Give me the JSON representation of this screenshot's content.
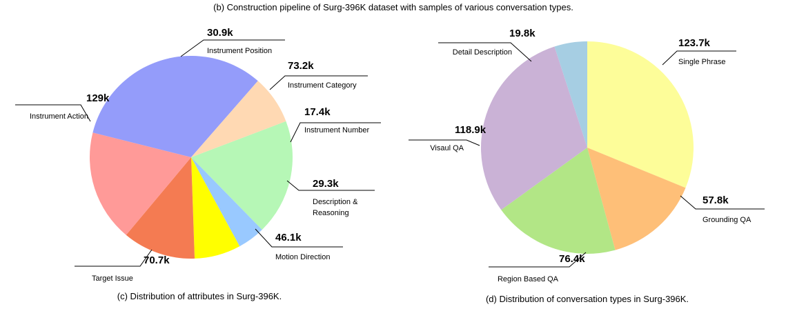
{
  "figure": {
    "header_caption": "(b) Construction pipeline of Surg-396K dataset with samples of various conversation types."
  },
  "chart_data": [
    {
      "type": "pie",
      "caption": "(c) Distribution of attributes in Surg-396K.",
      "slices": [
        {
          "label": "Instrument Category",
          "value": 73.2,
          "value_label": "73.2k",
          "color": "#b6f7b6"
        },
        {
          "label": "Instrument Number",
          "value": 17.4,
          "value_label": "17.4k",
          "color": "#99c9ff"
        },
        {
          "label": "Description & Reasoning",
          "label_lines": [
            "Description &",
            "Reasoning"
          ],
          "value": 29.3,
          "value_label": "29.3k",
          "color": "#ffff00"
        },
        {
          "label": "Motion Direction",
          "value": 46.1,
          "value_label": "46.1k",
          "color": "#f47b52"
        },
        {
          "label": "Target Issue",
          "value": 70.7,
          "value_label": "70.7k",
          "color": "#ff9a98"
        },
        {
          "label": "Instrument Action",
          "value": 129,
          "value_label": "129k",
          "color": "#949cfa"
        },
        {
          "label": "Instrument Position",
          "value": 30.9,
          "value_label": "30.9k",
          "color": "#ffd9b3"
        }
      ]
    },
    {
      "type": "pie",
      "caption": "(d) Distribution of conversation types in Surg-396K.",
      "slices": [
        {
          "label": "Single Phrase",
          "value": 123.7,
          "value_label": "123.7k",
          "color": "#fdfd99"
        },
        {
          "label": "Grounding QA",
          "value": 57.8,
          "value_label": "57.8k",
          "color": "#febf78"
        },
        {
          "label": "Region Based QA",
          "value": 76.4,
          "value_label": "76.4k",
          "color": "#b2e686"
        },
        {
          "label": "Visaul QA",
          "value": 118.9,
          "value_label": "118.9k",
          "color": "#cab2d6"
        },
        {
          "label": "Detail Description",
          "value": 19.8,
          "value_label": "19.8k",
          "color": "#a6cee3"
        }
      ]
    }
  ]
}
